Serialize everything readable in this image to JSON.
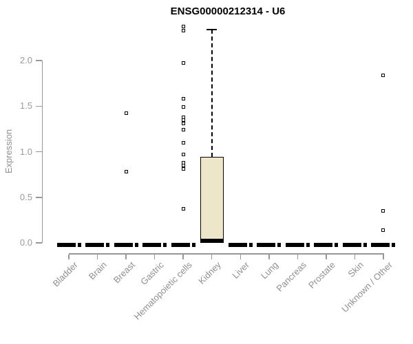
{
  "title": "ENSG00000212314 - U6",
  "y_axis": {
    "label": "Expression",
    "ticks": [
      "0.0",
      "0.5",
      "1.0",
      "1.5",
      "2.0"
    ]
  },
  "x_axis": {
    "categories": [
      "Bladder",
      "Brain",
      "Breast",
      "Gastric",
      "Hematopoietic cells",
      "Kidney",
      "Liver",
      "Lung",
      "Pancreas",
      "Prostate",
      "Skin",
      "Unknown / Other"
    ]
  },
  "colors": {
    "box_fill": "#ede6c9",
    "box_border": "#000000",
    "median": "#000000",
    "outlier": "#000000",
    "axis": "#979797",
    "tick_label": "#9a9a9a",
    "title": "#000000",
    "background": "#ffffff"
  },
  "chart_data": {
    "type": "boxplot",
    "title": "ENSG00000212314 - U6",
    "xlabel": "",
    "ylabel": "Expression",
    "ylim": [
      0,
      2.4
    ],
    "y_ticks": [
      0.0,
      0.5,
      1.0,
      1.5,
      2.0
    ],
    "grid": false,
    "legend": false,
    "categories": [
      "Bladder",
      "Brain",
      "Breast",
      "Gastric",
      "Hematopoietic cells",
      "Kidney",
      "Liver",
      "Lung",
      "Pancreas",
      "Prostate",
      "Skin",
      "Unknown / Other"
    ],
    "series": [
      {
        "category": "Bladder",
        "q1": 0,
        "median": 0,
        "q3": 0,
        "whisker_low": 0,
        "whisker_high": 0,
        "outliers": []
      },
      {
        "category": "Brain",
        "q1": 0,
        "median": 0,
        "q3": 0,
        "whisker_low": 0,
        "whisker_high": 0,
        "outliers": []
      },
      {
        "category": "Breast",
        "q1": 0,
        "median": 0,
        "q3": 0,
        "whisker_low": 0,
        "whisker_high": 0,
        "outliers": [
          1.42,
          0.78
        ]
      },
      {
        "category": "Gastric",
        "q1": 0,
        "median": 0,
        "q3": 0,
        "whisker_low": 0,
        "whisker_high": 0,
        "outliers": []
      },
      {
        "category": "Hematopoietic cells",
        "q1": 0,
        "median": 0,
        "q3": 0,
        "whisker_low": 0,
        "whisker_high": 0,
        "outliers": [
          2.37,
          2.33,
          1.97,
          1.58,
          1.49,
          1.38,
          1.35,
          1.31,
          1.24,
          1.1,
          0.97,
          0.88,
          0.85,
          0.81,
          0.37
        ]
      },
      {
        "category": "Kidney",
        "q1": 0.01,
        "median": 0.02,
        "q3": 0.94,
        "whisker_low": 0,
        "whisker_high": 2.34,
        "outliers": []
      },
      {
        "category": "Liver",
        "q1": 0,
        "median": 0,
        "q3": 0,
        "whisker_low": 0,
        "whisker_high": 0,
        "outliers": []
      },
      {
        "category": "Lung",
        "q1": 0,
        "median": 0,
        "q3": 0,
        "whisker_low": 0,
        "whisker_high": 0,
        "outliers": []
      },
      {
        "category": "Pancreas",
        "q1": 0,
        "median": 0,
        "q3": 0,
        "whisker_low": 0,
        "whisker_high": 0,
        "outliers": []
      },
      {
        "category": "Prostate",
        "q1": 0,
        "median": 0,
        "q3": 0,
        "whisker_low": 0,
        "whisker_high": 0,
        "outliers": []
      },
      {
        "category": "Skin",
        "q1": 0,
        "median": 0,
        "q3": 0,
        "whisker_low": 0,
        "whisker_high": 0,
        "outliers": []
      },
      {
        "category": "Unknown / Other",
        "q1": 0,
        "median": 0,
        "q3": 0,
        "whisker_low": 0,
        "whisker_high": 0,
        "outliers": [
          1.84,
          0.35,
          0.14
        ]
      }
    ]
  }
}
